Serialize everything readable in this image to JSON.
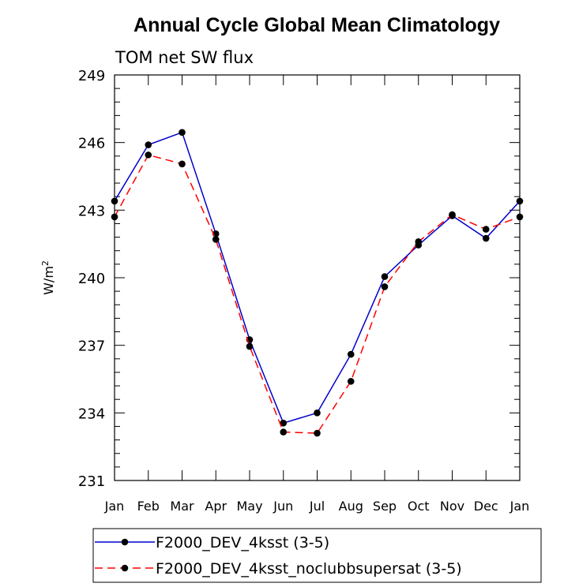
{
  "chart_data": {
    "type": "line",
    "title": "Annual Cycle Global Mean Climatology",
    "subtitle": "TOM net SW flux",
    "ylabel_base": "W/m",
    "ylabel_sup": "2",
    "categories": [
      "Jan",
      "Feb",
      "Mar",
      "Apr",
      "May",
      "Jun",
      "Jul",
      "Aug",
      "Sep",
      "Oct",
      "Nov",
      "Dec",
      "Jan"
    ],
    "ylim": [
      231,
      249
    ],
    "yticks": [
      231,
      234,
      237,
      240,
      243,
      246,
      249
    ],
    "series": [
      {
        "name": "F2000_DEV_4ksst (3-5)",
        "color": "#0000cc",
        "dash": "solid",
        "values": [
          243.4,
          245.9,
          246.45,
          241.95,
          237.25,
          233.55,
          234.0,
          236.6,
          240.05,
          241.45,
          242.75,
          241.75,
          243.4
        ]
      },
      {
        "name": "F2000_DEV_4ksst_noclubbsupersat (3-5)",
        "color": "#ff0000",
        "dash": "dashed",
        "values": [
          242.7,
          245.45,
          245.05,
          241.7,
          236.95,
          233.15,
          233.1,
          235.4,
          239.6,
          241.6,
          242.8,
          242.15,
          242.7
        ]
      }
    ]
  }
}
